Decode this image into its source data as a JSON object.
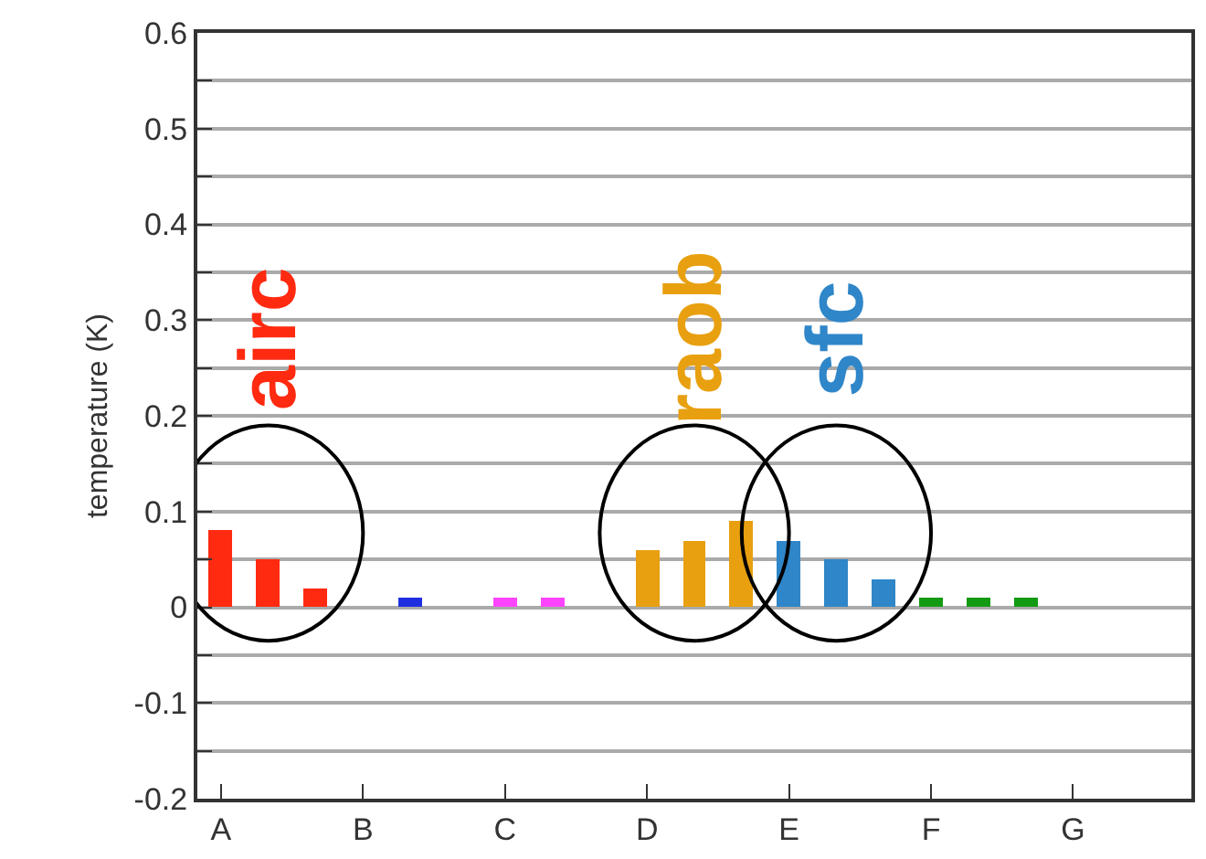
{
  "chart_data": {
    "type": "bar",
    "ylabel": "temperature (K)",
    "categories": [
      "A",
      null,
      null,
      "B",
      null,
      null,
      "C",
      null,
      null,
      "D",
      null,
      null,
      "E",
      null,
      null,
      "F",
      null,
      null,
      "G",
      null,
      null
    ],
    "ylim": [
      -0.2,
      0.6
    ],
    "yticks": [
      -0.2,
      {
        "value": -0.15,
        "label": null
      },
      -0.1,
      {
        "value": -0.05,
        "label": null
      },
      0,
      {
        "value": 0.05,
        "label": null
      },
      0.1,
      {
        "value": 0.15,
        "label": null
      },
      0.2,
      {
        "value": 0.25,
        "label": null
      },
      0.3,
      {
        "value": 0.35,
        "label": null
      },
      0.4,
      {
        "value": 0.45,
        "label": null
      },
      0.5,
      {
        "value": 0.55,
        "label": null
      },
      0.6
    ],
    "grid": "y",
    "legend": false,
    "series": [
      {
        "name": "airc",
        "color": "#ff2a10",
        "values": [
          0.08,
          0.05,
          0.02,
          null,
          null,
          null,
          null,
          null,
          null,
          null,
          null,
          null,
          null,
          null,
          null,
          null,
          null,
          null,
          null,
          null,
          null
        ]
      },
      {
        "color": "#1f2ee0",
        "values": [
          null,
          null,
          null,
          null,
          0.01,
          null,
          null,
          null,
          null,
          null,
          null,
          null,
          null,
          null,
          null,
          null,
          null,
          null,
          null,
          null,
          null
        ]
      },
      {
        "color": "#ff44ff",
        "values": [
          null,
          null,
          null,
          null,
          null,
          null,
          0.01,
          0.01,
          null,
          null,
          null,
          null,
          null,
          null,
          null,
          null,
          null,
          null,
          null,
          null,
          null
        ]
      },
      {
        "name": "raob",
        "color": "#e8a010",
        "values": [
          null,
          null,
          null,
          null,
          null,
          null,
          null,
          null,
          null,
          0.06,
          0.07,
          0.09,
          null,
          null,
          null,
          null,
          null,
          null,
          null,
          null,
          null
        ]
      },
      {
        "name": "sfc",
        "color": "#2f86c8",
        "values": [
          null,
          null,
          null,
          null,
          null,
          null,
          null,
          null,
          null,
          null,
          null,
          null,
          0.07,
          0.05,
          0.03,
          null,
          null,
          null,
          null,
          null,
          null
        ]
      },
      {
        "color": "#139a13",
        "values": [
          null,
          null,
          null,
          null,
          null,
          null,
          null,
          null,
          null,
          null,
          null,
          null,
          null,
          null,
          null,
          0.01,
          0.01,
          0.01,
          null,
          null,
          null
        ]
      }
    ]
  }
}
